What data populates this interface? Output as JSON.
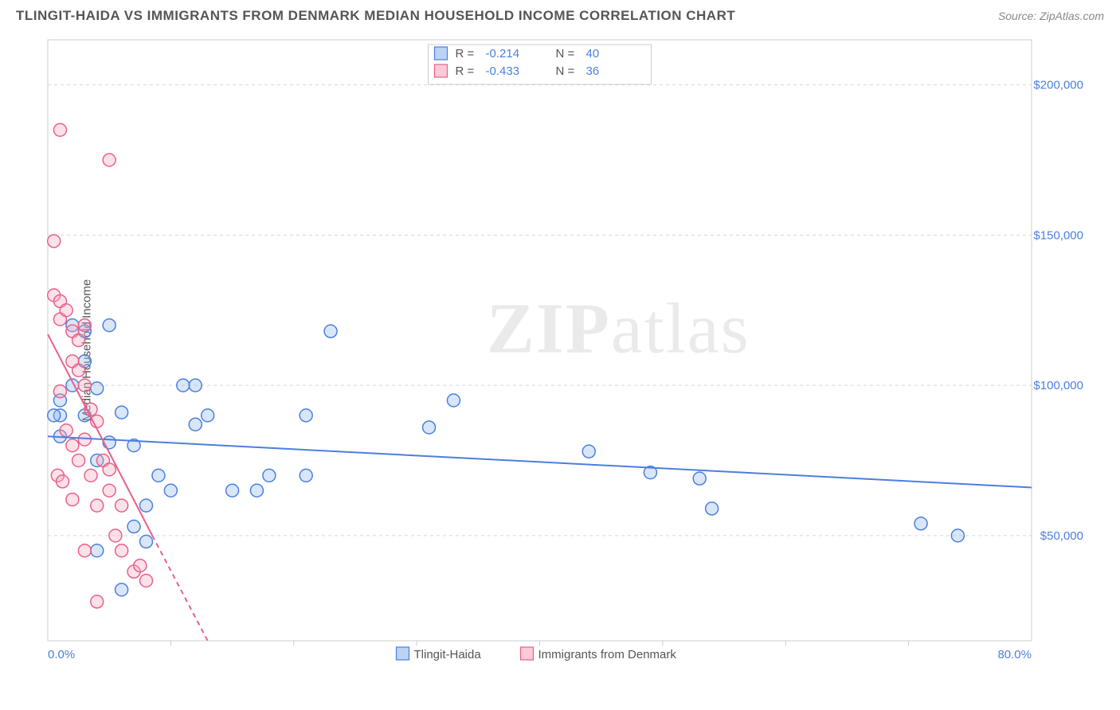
{
  "header": {
    "title": "TLINGIT-HAIDA VS IMMIGRANTS FROM DENMARK MEDIAN HOUSEHOLD INCOME CORRELATION CHART",
    "source": "Source: ZipAtlas.com"
  },
  "chart": {
    "type": "scatter",
    "ylabel": "Median Household Income",
    "xlim": [
      0,
      80
    ],
    "ylim": [
      15000,
      215000
    ],
    "background_color": "#ffffff",
    "grid_color": "#d8d8d8",
    "axis_color": "#cccccc",
    "xticks": [
      {
        "pos": 0,
        "label": "0.0%"
      },
      {
        "pos": 80,
        "label": "80.0%"
      }
    ],
    "yticks": [
      {
        "pos": 50000,
        "label": "$50,000"
      },
      {
        "pos": 100000,
        "label": "$100,000"
      },
      {
        "pos": 150000,
        "label": "$150,000"
      },
      {
        "pos": 200000,
        "label": "$200,000"
      }
    ],
    "minor_xticks": [
      10,
      20,
      30,
      40,
      50,
      60,
      70
    ],
    "watermark": "ZIPatlas",
    "marker_radius": 8,
    "marker_stroke_width": 1.5,
    "marker_fill_opacity": 0.35,
    "trendline_width": 2,
    "series": [
      {
        "name": "Tlingit-Haida",
        "fill_color": "#8fb8ec",
        "stroke_color": "#4a7fe0",
        "r_label": "R =",
        "n_label": "N =",
        "r": "-0.214",
        "n": "40",
        "trend": {
          "x1": 0,
          "y1": 83000,
          "x2": 80,
          "y2": 66000,
          "dash": "none"
        },
        "points": [
          [
            3,
            90000
          ],
          [
            3,
            118000
          ],
          [
            4,
            99000
          ],
          [
            4,
            75000
          ],
          [
            1,
            83000
          ],
          [
            1,
            90000
          ],
          [
            5,
            120000
          ],
          [
            5,
            81000
          ],
          [
            2,
            100000
          ],
          [
            6,
            91000
          ],
          [
            7,
            53000
          ],
          [
            7,
            80000
          ],
          [
            8,
            60000
          ],
          [
            8,
            48000
          ],
          [
            9,
            70000
          ],
          [
            10,
            65000
          ],
          [
            11,
            100000
          ],
          [
            12,
            87000
          ],
          [
            12,
            100000
          ],
          [
            13,
            90000
          ],
          [
            15,
            65000
          ],
          [
            17,
            65000
          ],
          [
            18,
            70000
          ],
          [
            21,
            70000
          ],
          [
            21,
            90000
          ],
          [
            23,
            118000
          ],
          [
            31,
            86000
          ],
          [
            33,
            95000
          ],
          [
            44,
            78000
          ],
          [
            49,
            71000
          ],
          [
            53,
            69000
          ],
          [
            54,
            59000
          ],
          [
            71,
            54000
          ],
          [
            74,
            50000
          ],
          [
            4,
            45000
          ],
          [
            6,
            32000
          ],
          [
            2,
            120000
          ],
          [
            3,
            108000
          ],
          [
            1,
            95000
          ],
          [
            0.5,
            90000
          ]
        ]
      },
      {
        "name": "Immigrants from Denmark",
        "fill_color": "#f4a9bd",
        "stroke_color": "#ea5f89",
        "r_label": "R =",
        "n_label": "N =",
        "r": "-0.433",
        "n": "36",
        "trend": {
          "x1": 0,
          "y1": 117000,
          "x2": 13,
          "y2": 15000,
          "dash": "6,5"
        },
        "trend_solid": {
          "x1": 0,
          "y1": 117000,
          "x2": 8.5,
          "y2": 50000
        },
        "points": [
          [
            0.5,
            148000
          ],
          [
            1,
            185000
          ],
          [
            5,
            175000
          ],
          [
            0.5,
            130000
          ],
          [
            1,
            128000
          ],
          [
            1,
            122000
          ],
          [
            1.5,
            125000
          ],
          [
            2,
            118000
          ],
          [
            2,
            108000
          ],
          [
            2.5,
            115000
          ],
          [
            2.5,
            105000
          ],
          [
            3,
            120000
          ],
          [
            3,
            100000
          ],
          [
            3.5,
            92000
          ],
          [
            1,
            98000
          ],
          [
            1.5,
            85000
          ],
          [
            2,
            80000
          ],
          [
            2.5,
            75000
          ],
          [
            3,
            82000
          ],
          [
            3.5,
            70000
          ],
          [
            4,
            88000
          ],
          [
            4,
            60000
          ],
          [
            4.5,
            75000
          ],
          [
            5,
            65000
          ],
          [
            5.5,
            50000
          ],
          [
            6,
            45000
          ],
          [
            6,
            60000
          ],
          [
            7,
            38000
          ],
          [
            7.5,
            40000
          ],
          [
            8,
            35000
          ],
          [
            4,
            28000
          ],
          [
            3,
            45000
          ],
          [
            0.8,
            70000
          ],
          [
            1.2,
            68000
          ],
          [
            2,
            62000
          ],
          [
            5,
            72000
          ]
        ]
      }
    ],
    "bottom_legend": [
      {
        "label": "Tlingit-Haida",
        "fill": "#8fb8ec",
        "stroke": "#4a7fe0"
      },
      {
        "label": "Immigrants from Denmark",
        "fill": "#f4a9bd",
        "stroke": "#ea5f89"
      }
    ]
  }
}
